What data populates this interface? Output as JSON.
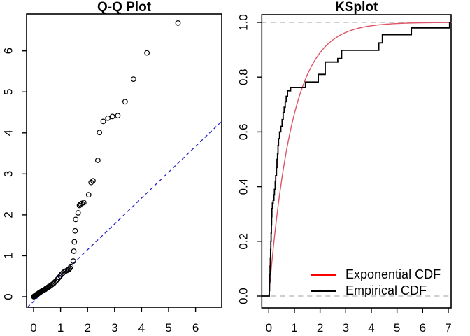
{
  "background_color": "#ffffff",
  "chart_data": [
    {
      "type": "scatter",
      "title": "Q-Q Plot",
      "xlabel": "",
      "ylabel": "",
      "xlim": [
        -0.27,
        6.98
      ],
      "ylim": [
        -0.26,
        6.9
      ],
      "x_ticks": [
        "0",
        "1",
        "2",
        "3",
        "4",
        "5",
        "6"
      ],
      "y_ticks": [
        "0",
        "1",
        "2",
        "3",
        "4",
        "5",
        "6"
      ],
      "point_color": "#000000",
      "points": [
        [
          0.01,
          0.0
        ],
        [
          0.02,
          0.01
        ],
        [
          0.04,
          0.02
        ],
        [
          0.05,
          0.02
        ],
        [
          0.07,
          0.03
        ],
        [
          0.08,
          0.04
        ],
        [
          0.1,
          0.05
        ],
        [
          0.12,
          0.05
        ],
        [
          0.14,
          0.06
        ],
        [
          0.16,
          0.07
        ],
        [
          0.18,
          0.08
        ],
        [
          0.2,
          0.09
        ],
        [
          0.22,
          0.1
        ],
        [
          0.24,
          0.11
        ],
        [
          0.27,
          0.12
        ],
        [
          0.29,
          0.13
        ],
        [
          0.32,
          0.14
        ],
        [
          0.34,
          0.15
        ],
        [
          0.37,
          0.16
        ],
        [
          0.4,
          0.17
        ],
        [
          0.43,
          0.18
        ],
        [
          0.46,
          0.2
        ],
        [
          0.49,
          0.21
        ],
        [
          0.52,
          0.22
        ],
        [
          0.55,
          0.24
        ],
        [
          0.59,
          0.25
        ],
        [
          0.63,
          0.27
        ],
        [
          0.67,
          0.29
        ],
        [
          0.71,
          0.31
        ],
        [
          0.75,
          0.33
        ],
        [
          0.79,
          0.36
        ],
        [
          0.84,
          0.39
        ],
        [
          0.89,
          0.43
        ],
        [
          0.94,
          0.47
        ],
        [
          0.99,
          0.51
        ],
        [
          1.04,
          0.55
        ],
        [
          1.09,
          0.58
        ],
        [
          1.14,
          0.61
        ],
        [
          1.2,
          0.63
        ],
        [
          1.26,
          0.65
        ],
        [
          1.31,
          0.67
        ],
        [
          1.35,
          0.7
        ],
        [
          1.38,
          0.74
        ],
        [
          1.47,
          0.87
        ],
        [
          1.49,
          1.11
        ],
        [
          1.51,
          1.34
        ],
        [
          1.54,
          1.61
        ],
        [
          1.56,
          1.89
        ],
        [
          1.65,
          2.05
        ],
        [
          1.7,
          2.23
        ],
        [
          1.74,
          2.26
        ],
        [
          1.79,
          2.28
        ],
        [
          1.86,
          2.3
        ],
        [
          2.04,
          2.49
        ],
        [
          2.13,
          2.79
        ],
        [
          2.2,
          2.83
        ],
        [
          2.38,
          3.33
        ],
        [
          2.44,
          4.01
        ],
        [
          2.58,
          4.28
        ],
        [
          2.75,
          4.36
        ],
        [
          2.92,
          4.4
        ],
        [
          3.12,
          4.42
        ],
        [
          3.39,
          4.76
        ],
        [
          3.7,
          5.31
        ],
        [
          4.2,
          5.95
        ],
        [
          5.35,
          6.68
        ]
      ],
      "ref_line": {
        "x1": -0.23,
        "y1": -0.26,
        "x2": 6.98,
        "y2": 4.29,
        "color": "#2222cc",
        "style": "dashed"
      }
    },
    {
      "type": "line",
      "title": "KSplot",
      "xlabel": "",
      "ylabel": "",
      "xlim": [
        -0.28,
        7.28
      ],
      "ylim": [
        -0.04,
        1.03
      ],
      "x_ticks": [
        "0",
        "1",
        "2",
        "3",
        "4",
        "5",
        "6",
        "7"
      ],
      "y_ticks": [
        "0.0",
        "0.2",
        "0.4",
        "0.6",
        "0.8",
        "1.0"
      ],
      "hlines": {
        "values": [
          0.0,
          1.0
        ],
        "color": "#b0b0b0",
        "style": "dashed"
      },
      "legend_position": "bottomright",
      "series": [
        {
          "name": "Exponential CDF",
          "legend_color": "#ff0000",
          "curve_color": "#dd5566",
          "model": "exponential_cdf",
          "rate": 1.1,
          "x_range": [
            0,
            7.15
          ]
        },
        {
          "name": "Empirical CDF",
          "legend_color": "#000000",
          "curve_color": "#000000",
          "model": "step_ecdf",
          "steps": [
            [
              0.02,
              0.02
            ],
            [
              0.03,
              0.05
            ],
            [
              0.04,
              0.08
            ],
            [
              0.05,
              0.11
            ],
            [
              0.06,
              0.14
            ],
            [
              0.07,
              0.17
            ],
            [
              0.08,
              0.2
            ],
            [
              0.09,
              0.23
            ],
            [
              0.1,
              0.26
            ],
            [
              0.11,
              0.29
            ],
            [
              0.12,
              0.32
            ],
            [
              0.14,
              0.34
            ],
            [
              0.17,
              0.35
            ],
            [
              0.2,
              0.37
            ],
            [
              0.22,
              0.39
            ],
            [
              0.25,
              0.42
            ],
            [
              0.27,
              0.44
            ],
            [
              0.3,
              0.47
            ],
            [
              0.32,
              0.5
            ],
            [
              0.34,
              0.52
            ],
            [
              0.36,
              0.55
            ],
            [
              0.38,
              0.575
            ],
            [
              0.42,
              0.6
            ],
            [
              0.47,
              0.62
            ],
            [
              0.52,
              0.645
            ],
            [
              0.56,
              0.67
            ],
            [
              0.6,
              0.69
            ],
            [
              0.64,
              0.71
            ],
            [
              0.68,
              0.73
            ],
            [
              0.73,
              0.75
            ],
            [
              0.85,
              0.762
            ],
            [
              1.43,
              0.782
            ],
            [
              1.93,
              0.81
            ],
            [
              2.2,
              0.855
            ],
            [
              2.69,
              0.868
            ],
            [
              2.84,
              0.898
            ],
            [
              4.29,
              0.925
            ],
            [
              4.43,
              0.955
            ],
            [
              5.56,
              0.98
            ],
            [
              7.05,
              1.0
            ]
          ]
        }
      ]
    }
  ]
}
